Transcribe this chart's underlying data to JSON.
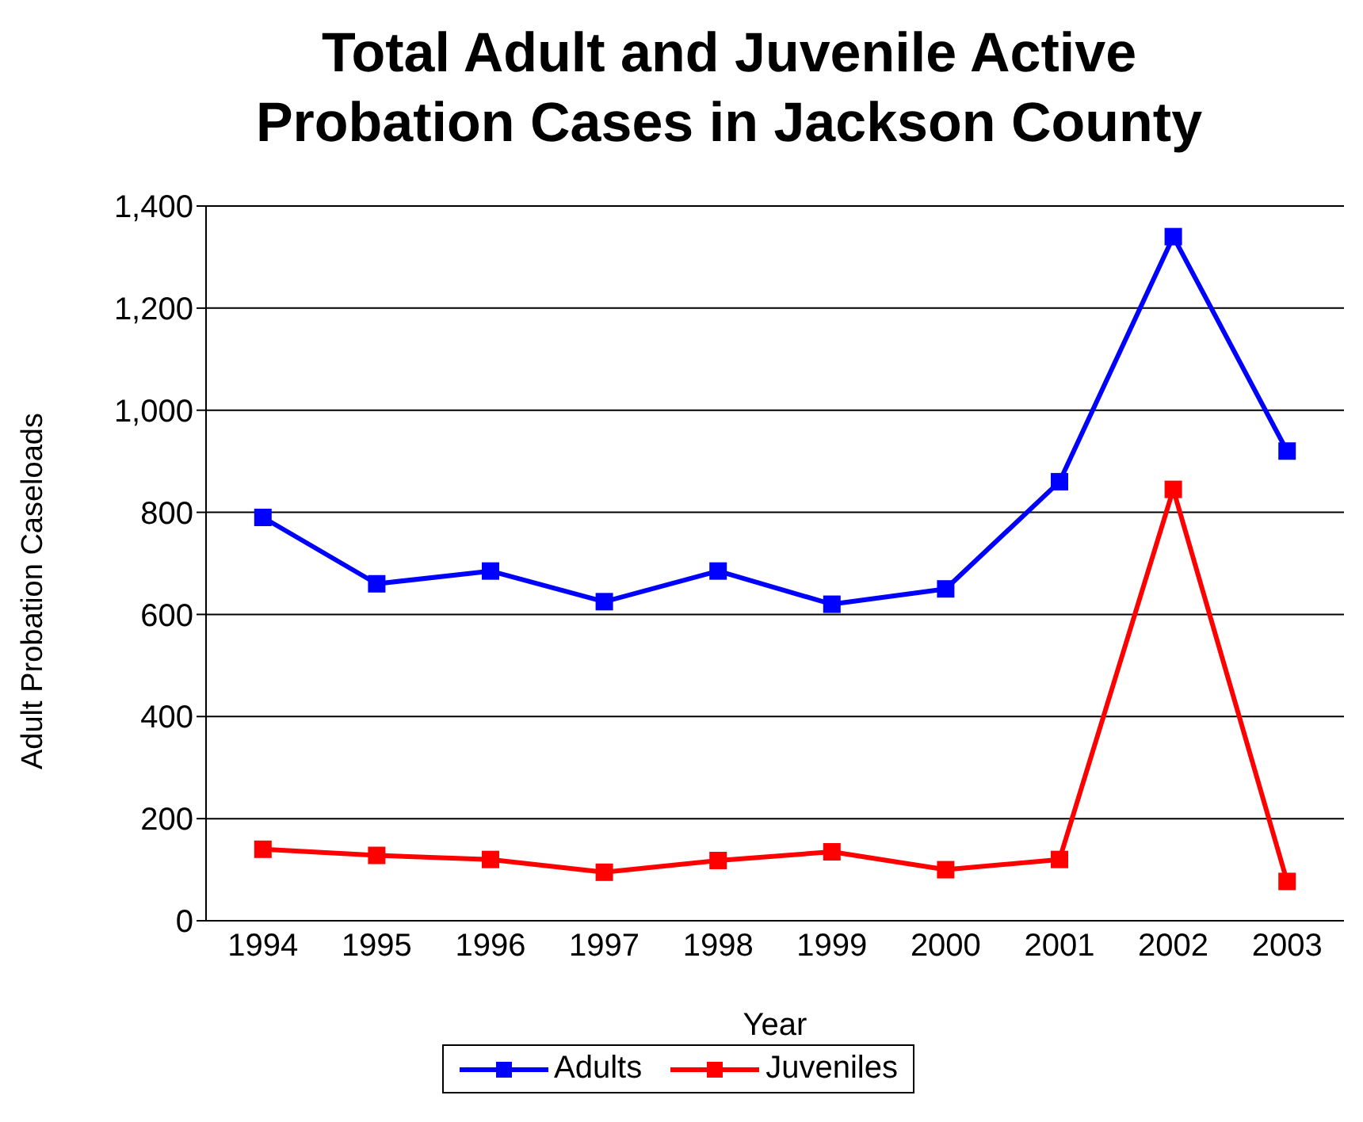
{
  "chart_data": {
    "type": "line",
    "title": "Total Adult and Juvenile Active Probation Cases in Jackson County",
    "xlabel": "Year",
    "ylabel": "Adult Probation Caseloads",
    "categories": [
      "1994",
      "1995",
      "1996",
      "1997",
      "1998",
      "1999",
      "2000",
      "2001",
      "2002",
      "2003"
    ],
    "series": [
      {
        "name": "Adults",
        "color": "#0000ff",
        "values": [
          790,
          660,
          685,
          625,
          685,
          620,
          650,
          860,
          1340,
          920
        ]
      },
      {
        "name": "Juveniles",
        "color": "#ff0000",
        "values": [
          140,
          128,
          120,
          95,
          118,
          135,
          100,
          120,
          845,
          77
        ]
      }
    ],
    "ylim": [
      0,
      1400
    ],
    "yticks": [
      {
        "value": 0,
        "label": "0"
      },
      {
        "value": 200,
        "label": "200"
      },
      {
        "value": 400,
        "label": "400"
      },
      {
        "value": 600,
        "label": "600"
      },
      {
        "value": 800,
        "label": "800"
      },
      {
        "value": 1000,
        "label": "1,000"
      },
      {
        "value": 1200,
        "label": "1,200"
      },
      {
        "value": 1400,
        "label": "1,400"
      }
    ],
    "grid": "y",
    "legend": "bottom",
    "marker": "square",
    "line_style": "solid"
  }
}
